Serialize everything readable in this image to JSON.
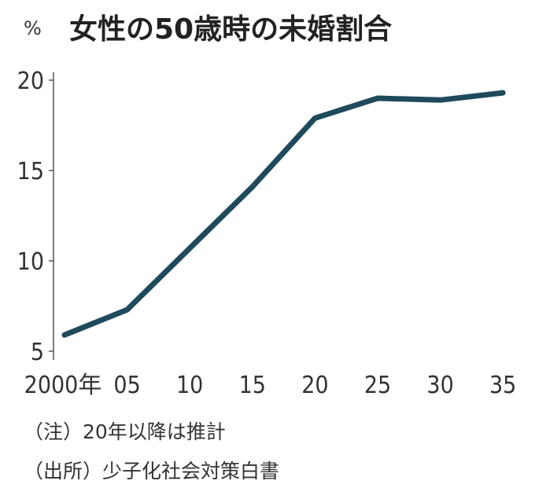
{
  "chart_data": {
    "type": "line",
    "title": "女性の50歳時の未婚割合",
    "ylabel": "%",
    "xlabel": "",
    "categories": [
      "2000年",
      "05",
      "10",
      "15",
      "20",
      "25",
      "30",
      "35"
    ],
    "x": [
      2000,
      2005,
      2010,
      2015,
      2020,
      2025,
      2030,
      2035
    ],
    "series": [
      {
        "name": "女性の50歳時の未婚割合",
        "values": [
          5.9,
          7.3,
          10.7,
          14.1,
          17.9,
          19.0,
          18.9,
          19.3
        ]
      }
    ],
    "yticks": [
      5,
      10,
      15,
      20
    ],
    "ylim": [
      5,
      20
    ],
    "grid": false,
    "line_color": "#1f4a5c",
    "notes": [
      "（注）20年以降は推計",
      "（出所）少子化社会対策白書"
    ]
  }
}
